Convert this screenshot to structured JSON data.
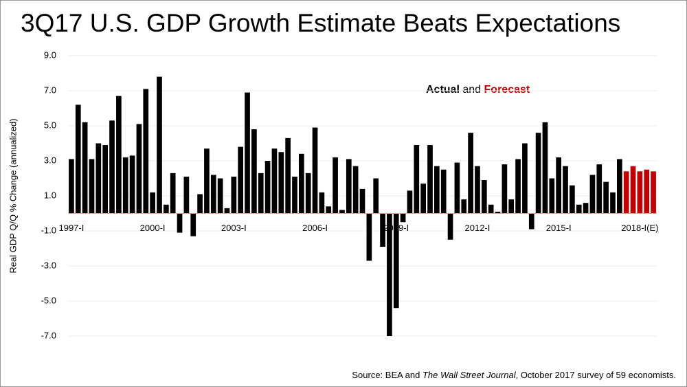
{
  "chart_data": {
    "type": "bar",
    "title": "3Q17 U.S. GDP Growth Estimate Beats Expectations",
    "y_label": "Real GDP Q/Q % Change (annualized)",
    "annotation_joiner": "and",
    "source": [
      "Source: BEA and ",
      "The Wall Street Journal",
      ", October 2017 survey of 59 economists."
    ],
    "categories": [
      "1997-I",
      null,
      null,
      null,
      null,
      null,
      null,
      null,
      null,
      null,
      null,
      null,
      "2000-I",
      null,
      null,
      null,
      null,
      null,
      null,
      null,
      null,
      null,
      null,
      null,
      "2003-I",
      null,
      null,
      null,
      null,
      null,
      null,
      null,
      null,
      null,
      null,
      null,
      "2006-I",
      null,
      null,
      null,
      null,
      null,
      null,
      null,
      null,
      null,
      null,
      null,
      "2009-I",
      null,
      null,
      null,
      null,
      null,
      null,
      null,
      null,
      null,
      null,
      null,
      "2012-I",
      null,
      null,
      null,
      null,
      null,
      null,
      null,
      null,
      null,
      null,
      null,
      "2015-I",
      null,
      null,
      null,
      null,
      null,
      null,
      null,
      null,
      null,
      null,
      null,
      "2018-I(E)",
      null,
      null
    ],
    "series": [
      {
        "name": "Actual",
        "color": "#000000",
        "values": [
          3.1,
          6.2,
          5.2,
          3.1,
          4.0,
          3.9,
          5.3,
          6.7,
          3.2,
          3.3,
          5.1,
          7.1,
          1.2,
          7.8,
          0.5,
          2.3,
          -1.1,
          2.1,
          -1.3,
          1.1,
          3.7,
          2.2,
          2.0,
          0.3,
          2.1,
          3.8,
          6.9,
          4.8,
          2.3,
          3.0,
          3.7,
          3.5,
          4.3,
          2.1,
          3.4,
          2.3,
          4.9,
          1.2,
          0.4,
          3.2,
          0.2,
          3.1,
          2.7,
          1.4,
          -2.7,
          2.0,
          -1.9,
          -7.0,
          -5.4,
          -0.5,
          1.3,
          3.9,
          1.7,
          3.9,
          2.7,
          2.5,
          -1.5,
          2.9,
          0.8,
          4.6,
          2.7,
          1.9,
          0.5,
          0.1,
          2.8,
          0.8,
          3.1,
          4.0,
          -0.9,
          4.6,
          5.2,
          2.0,
          3.2,
          2.7,
          1.6,
          0.5,
          0.6,
          2.2,
          2.8,
          1.8,
          1.2,
          3.1,
          null,
          null,
          null,
          null,
          null
        ]
      },
      {
        "name": "Forecast",
        "color": "#c00000",
        "values": [
          null,
          null,
          null,
          null,
          null,
          null,
          null,
          null,
          null,
          null,
          null,
          null,
          null,
          null,
          null,
          null,
          null,
          null,
          null,
          null,
          null,
          null,
          null,
          null,
          null,
          null,
          null,
          null,
          null,
          null,
          null,
          null,
          null,
          null,
          null,
          null,
          null,
          null,
          null,
          null,
          null,
          null,
          null,
          null,
          null,
          null,
          null,
          null,
          null,
          null,
          null,
          null,
          null,
          null,
          null,
          null,
          null,
          null,
          null,
          null,
          null,
          null,
          null,
          null,
          null,
          null,
          null,
          null,
          null,
          null,
          null,
          null,
          null,
          null,
          null,
          null,
          null,
          null,
          null,
          null,
          null,
          null,
          2.4,
          2.7,
          2.4,
          2.5,
          2.4
        ]
      }
    ],
    "ylim": [
      -7,
      9
    ],
    "yticks": [
      {
        "value": -7,
        "label": "-7.0"
      },
      {
        "value": -5,
        "label": "-5.0"
      },
      {
        "value": -3,
        "label": "-3.0"
      },
      {
        "value": -1,
        "label": "-1.0"
      },
      {
        "value": 1,
        "label": "1.0"
      },
      {
        "value": 3,
        "label": "3.0"
      },
      {
        "value": 5,
        "label": "5.0"
      },
      {
        "value": 7,
        "label": "7.0"
      },
      {
        "value": 9,
        "label": "9.0"
      }
    ],
    "grid": true
  }
}
